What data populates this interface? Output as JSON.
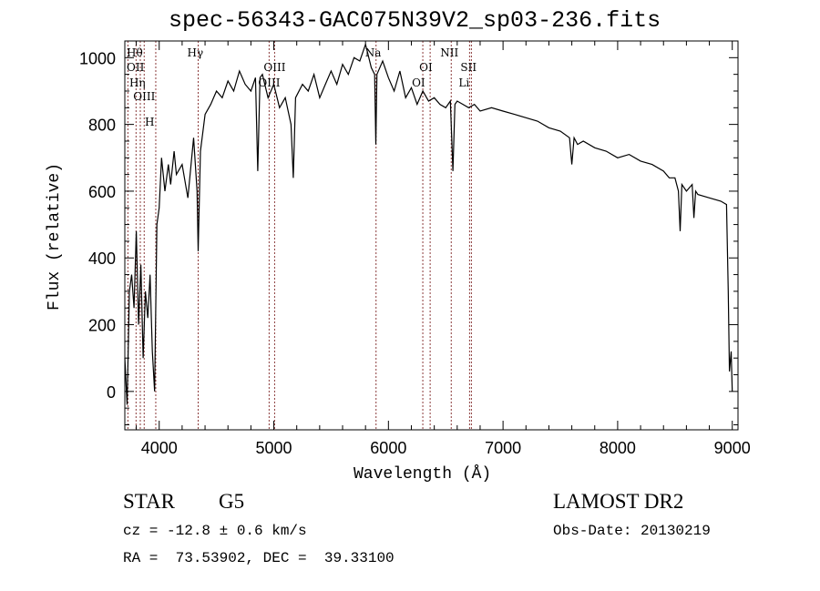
{
  "chart_data": {
    "type": "line",
    "title": "spec-56343-GAC075N39V2_sp03-236.fits",
    "xlabel": "Wavelength (Å)",
    "ylabel": "Flux (relative)",
    "xlim": [
      3700,
      9050
    ],
    "ylim": [
      -115,
      1050
    ],
    "xticks": [
      4000,
      5000,
      6000,
      7000,
      8000,
      9000
    ],
    "yticks": [
      0,
      200,
      400,
      600,
      800,
      1000
    ],
    "series": [
      {
        "name": "spectrum",
        "x": [
          3700,
          3720,
          3740,
          3760,
          3780,
          3800,
          3820,
          3840,
          3860,
          3880,
          3900,
          3920,
          3940,
          3960,
          3980,
          4000,
          4020,
          4050,
          4080,
          4100,
          4130,
          4150,
          4200,
          4250,
          4300,
          4330,
          4340,
          4360,
          4400,
          4450,
          4500,
          4550,
          4600,
          4650,
          4700,
          4750,
          4800,
          4840,
          4860,
          4880,
          4900,
          4950,
          5000,
          5050,
          5100,
          5150,
          5170,
          5190,
          5250,
          5300,
          5350,
          5400,
          5450,
          5500,
          5550,
          5600,
          5650,
          5700,
          5750,
          5800,
          5850,
          5880,
          5890,
          5900,
          5950,
          6000,
          6050,
          6100,
          6150,
          6200,
          6250,
          6300,
          6350,
          6400,
          6450,
          6500,
          6540,
          6563,
          6580,
          6600,
          6650,
          6700,
          6750,
          6800,
          6900,
          7000,
          7100,
          7200,
          7300,
          7400,
          7500,
          7580,
          7600,
          7620,
          7650,
          7700,
          7800,
          7900,
          8000,
          8100,
          8200,
          8300,
          8400,
          8450,
          8500,
          8530,
          8545,
          8560,
          8600,
          8650,
          8665,
          8680,
          8700,
          8800,
          8900,
          8950,
          8965,
          8975,
          8990,
          9000
        ],
        "y": [
          100,
          -40,
          300,
          350,
          250,
          480,
          200,
          380,
          100,
          300,
          220,
          350,
          120,
          0,
          500,
          550,
          700,
          600,
          680,
          620,
          720,
          650,
          680,
          580,
          760,
          600,
          420,
          720,
          830,
          860,
          900,
          880,
          930,
          900,
          960,
          920,
          900,
          940,
          660,
          940,
          950,
          880,
          920,
          850,
          880,
          800,
          640,
          880,
          920,
          900,
          950,
          880,
          920,
          960,
          920,
          980,
          950,
          1000,
          990,
          1040,
          970,
          950,
          740,
          950,
          990,
          940,
          900,
          960,
          880,
          910,
          860,
          900,
          870,
          880,
          860,
          850,
          870,
          660,
          860,
          870,
          860,
          850,
          860,
          840,
          850,
          840,
          830,
          820,
          810,
          790,
          780,
          760,
          680,
          760,
          740,
          750,
          730,
          720,
          700,
          710,
          690,
          680,
          660,
          640,
          640,
          600,
          480,
          620,
          600,
          620,
          520,
          600,
          590,
          580,
          570,
          560,
          300,
          60,
          120,
          0
        ]
      }
    ],
    "lines": [
      {
        "label": "OII",
        "wl": 3727,
        "row": 2
      },
      {
        "label": "Hθ",
        "wl": 3798,
        "row": 1
      },
      {
        "label": "Hη",
        "wl": 3835,
        "row": 3
      },
      {
        "label": "OIII",
        "wl": 3869,
        "row": 3
      },
      {
        "label": "H",
        "wl": 3970,
        "row": 2
      },
      {
        "label": "Hγ",
        "wl": 4340,
        "row": 1
      },
      {
        "label": "OIII",
        "wl": 4959,
        "row": 3
      },
      {
        "label": "OIII",
        "wl": 5007,
        "row": 2
      },
      {
        "label": "Na",
        "wl": 5892,
        "row": 1
      },
      {
        "label": "OI",
        "wl": 6300,
        "row": 3
      },
      {
        "label": "OI",
        "wl": 6364,
        "row": 2
      },
      {
        "label": "NII",
        "wl": 6548,
        "row": 1
      },
      {
        "label": "Li",
        "wl": 6708,
        "row": 3
      },
      {
        "label": "SII",
        "wl": 6724,
        "row": 2
      }
    ]
  },
  "info": {
    "object": "STAR",
    "subclass": "G5",
    "cz": "cz = -12.8 ± 0.6 km/s",
    "coords": "RA =  73.53902, DEC =  39.33100",
    "survey": "LAMOST DR2",
    "obs_date": "Obs-Date: 20130219"
  }
}
